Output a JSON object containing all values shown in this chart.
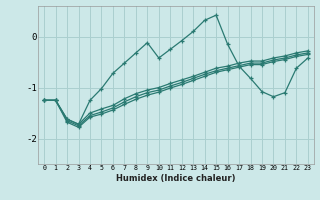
{
  "xlabel": "Humidex (Indice chaleur)",
  "ylabel": "",
  "xlim": [
    -0.5,
    23.5
  ],
  "ylim": [
    -2.5,
    0.6
  ],
  "bg_color": "#cce8e8",
  "grid_color": "#aacfcf",
  "line_color": "#2a7a72",
  "xticks": [
    0,
    1,
    2,
    3,
    4,
    5,
    6,
    7,
    8,
    9,
    10,
    11,
    12,
    13,
    14,
    15,
    16,
    17,
    18,
    19,
    20,
    21,
    22,
    23
  ],
  "yticks": [
    0,
    -1,
    -2
  ],
  "series": [
    {
      "x": [
        0,
        1,
        2,
        3,
        4,
        5,
        6,
        7,
        8,
        9,
        10,
        11,
        12,
        13,
        14,
        15,
        16,
        17,
        18,
        19,
        20,
        21,
        22,
        23
      ],
      "y": [
        -1.25,
        -1.25,
        -1.62,
        -1.72,
        -1.25,
        -1.02,
        -0.72,
        -0.52,
        -0.32,
        -0.12,
        -0.42,
        -0.25,
        -0.08,
        0.1,
        0.32,
        0.42,
        -0.15,
        -0.58,
        -0.82,
        -1.08,
        -1.18,
        -1.1,
        -0.62,
        -0.42
      ]
    },
    {
      "x": [
        0,
        1,
        2,
        3,
        4,
        5,
        6,
        7,
        8,
        9,
        10,
        11,
        12,
        13,
        14,
        15,
        16,
        17,
        18,
        19,
        20,
        21,
        22,
        23
      ],
      "y": [
        -1.25,
        -1.25,
        -1.62,
        -1.72,
        -1.5,
        -1.42,
        -1.35,
        -1.22,
        -1.12,
        -1.05,
        -1.0,
        -0.92,
        -0.85,
        -0.78,
        -0.7,
        -0.62,
        -0.58,
        -0.52,
        -0.48,
        -0.48,
        -0.42,
        -0.38,
        -0.32,
        -0.28
      ]
    },
    {
      "x": [
        0,
        1,
        2,
        3,
        4,
        5,
        6,
        7,
        8,
        9,
        10,
        11,
        12,
        13,
        14,
        15,
        16,
        17,
        18,
        19,
        20,
        21,
        22,
        23
      ],
      "y": [
        -1.25,
        -1.25,
        -1.65,
        -1.75,
        -1.55,
        -1.48,
        -1.4,
        -1.28,
        -1.18,
        -1.1,
        -1.05,
        -0.97,
        -0.9,
        -0.82,
        -0.74,
        -0.67,
        -0.62,
        -0.57,
        -0.52,
        -0.52,
        -0.46,
        -0.42,
        -0.36,
        -0.32
      ]
    },
    {
      "x": [
        0,
        1,
        2,
        3,
        4,
        5,
        6,
        7,
        8,
        9,
        10,
        11,
        12,
        13,
        14,
        15,
        16,
        17,
        18,
        19,
        20,
        21,
        22,
        23
      ],
      "y": [
        -1.25,
        -1.25,
        -1.68,
        -1.78,
        -1.58,
        -1.52,
        -1.44,
        -1.33,
        -1.23,
        -1.15,
        -1.09,
        -1.01,
        -0.94,
        -0.86,
        -0.78,
        -0.7,
        -0.65,
        -0.6,
        -0.55,
        -0.55,
        -0.49,
        -0.45,
        -0.39,
        -0.35
      ]
    }
  ]
}
